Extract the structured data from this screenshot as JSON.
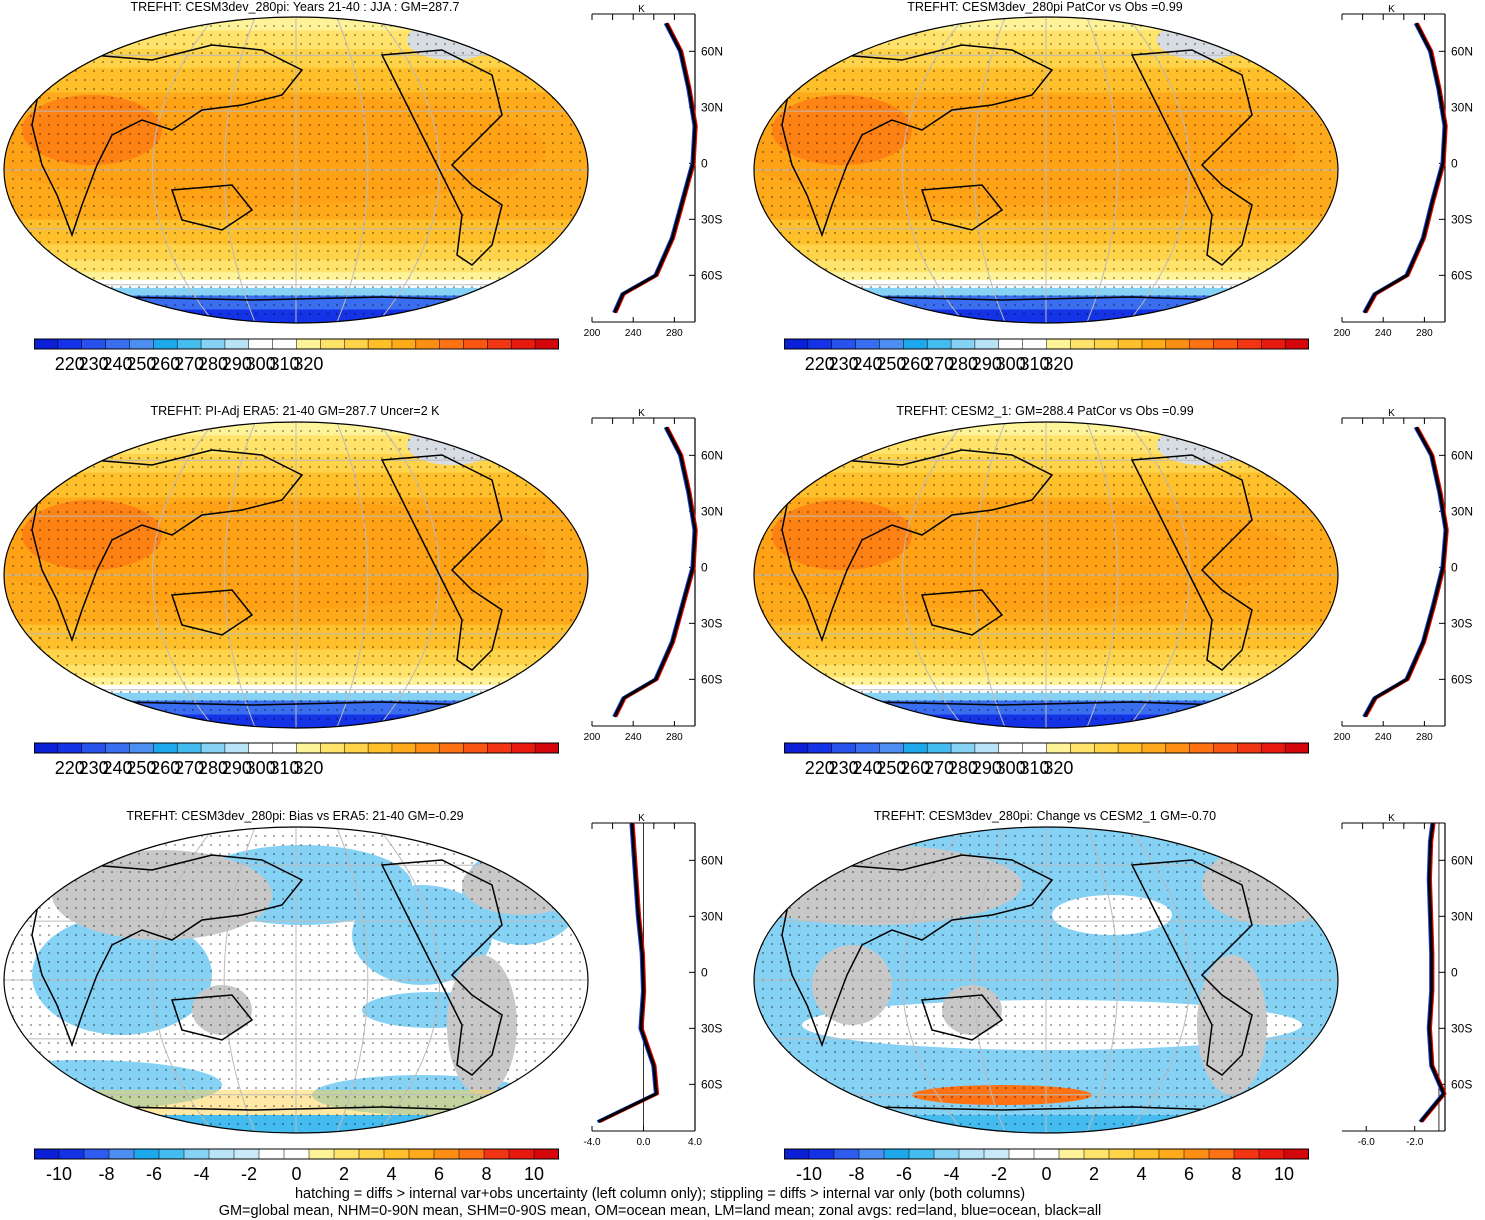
{
  "panels": [
    {
      "title": "TREFHT: CESM3dev_280pi: Years 21-40 : JJA : GM=287.7",
      "kind": "abs"
    },
    {
      "title": "TREFHT: CESM3dev_280pi PatCor vs Obs =0.99",
      "kind": "abs"
    },
    {
      "title": "TREFHT: PI-Adj ERA5: 21-40 GM=287.7 Uncer=2 K",
      "kind": "abs"
    },
    {
      "title": "TREFHT: CESM2_1: GM=288.4 PatCor vs Obs =0.99",
      "kind": "abs"
    },
    {
      "title": "TREFHT: CESM3dev_280pi: Bias vs ERA5: 21-40 GM=-0.29",
      "kind": "bias"
    },
    {
      "title": "TREFHT: CESM3dev_280pi: Change vs CESM2_1 GM=-0.70",
      "kind": "change"
    }
  ],
  "colorbars": {
    "abs": {
      "labels": [
        "220",
        "230",
        "240",
        "250",
        "260",
        "270",
        "280",
        "290",
        "300",
        "310",
        "320"
      ]
    },
    "diff": {
      "labels": [
        "-10",
        "-8",
        "-6",
        "-4",
        "-2",
        "0",
        "2",
        "4",
        "6",
        "8",
        "10"
      ]
    }
  },
  "zonal_axes": {
    "unit": "K",
    "lat_labels": [
      "60N",
      "30N",
      "0",
      "30S",
      "60S"
    ],
    "abs_x_labels": [
      "200",
      "240",
      "280"
    ],
    "bias_x_labels": [
      "-4.0",
      "0.0",
      "4.0"
    ],
    "change_x_labels": [
      "-6.0",
      "-2.0"
    ]
  },
  "footer": {
    "line1": "hatching = diffs > internal var+obs uncertainty (left column only); stippling = diffs > internal var only (both columns)",
    "line2": "GM=global mean, NHM=0-90N mean, SHM=0-90S mean, OM=ocean mean, LM=land mean; zonal avgs: red=land, blue=ocean, black=all"
  },
  "legend_colors": {
    "land": "#e60000",
    "ocean": "#1a3fe0",
    "all": "#000000"
  },
  "chart_data": [
    {
      "type": "heatmap",
      "title": "TREFHT: CESM3dev_280pi: Years 21-40 : JJA : GM=287.7",
      "colorbar_range": [
        220,
        320
      ],
      "global_mean": 287.7,
      "zonal_mean_lat": [
        -80,
        -70,
        -60,
        -40,
        -20,
        0,
        20,
        40,
        60,
        75
      ],
      "zonal_mean_all": [
        222,
        230,
        262,
        278,
        288,
        298,
        300,
        294,
        286,
        272
      ]
    },
    {
      "type": "heatmap",
      "title": "TREFHT: CESM3dev_280pi PatCor vs Obs =0.99",
      "colorbar_range": [
        220,
        320
      ],
      "pattern_correlation": 0.99,
      "zonal_mean_lat": [
        -80,
        -70,
        -60,
        -40,
        -20,
        0,
        20,
        40,
        60,
        75
      ],
      "zonal_mean_all": [
        222,
        232,
        263,
        279,
        288,
        298,
        300,
        294,
        286,
        272
      ]
    },
    {
      "type": "heatmap",
      "title": "TREFHT: PI-Adj ERA5: 21-40 GM=287.7 Uncer=2 K",
      "colorbar_range": [
        220,
        320
      ],
      "global_mean": 287.7,
      "zonal_mean_lat": [
        -80,
        -70,
        -60,
        -40,
        -20,
        0,
        20,
        40,
        60,
        75
      ],
      "zonal_mean_all": [
        222,
        231,
        262,
        278,
        288,
        298,
        300,
        294,
        286,
        272
      ]
    },
    {
      "type": "heatmap",
      "title": "TREFHT: CESM2_1: GM=288.4 PatCor vs Obs =0.99",
      "colorbar_range": [
        220,
        320
      ],
      "global_mean": 288.4,
      "pattern_correlation": 0.99,
      "zonal_mean_lat": [
        -80,
        -70,
        -60,
        -40,
        -20,
        0,
        20,
        40,
        60,
        75
      ],
      "zonal_mean_all": [
        222,
        232,
        263,
        279,
        289,
        298,
        301,
        295,
        287,
        272
      ]
    },
    {
      "type": "heatmap",
      "title": "TREFHT: CESM3dev_280pi: Bias vs ERA5: 21-40 GM=-0.29",
      "colorbar_range": [
        -10,
        10
      ],
      "global_mean": -0.29,
      "zonal_mean_lat": [
        -80,
        -65,
        -50,
        -30,
        -10,
        10,
        30,
        50,
        70,
        80
      ],
      "zonal_mean_all": [
        -3.5,
        1.0,
        0.8,
        -0.2,
        0.0,
        -0.1,
        -0.4,
        -0.6,
        -0.8,
        -0.9
      ]
    },
    {
      "type": "heatmap",
      "title": "TREFHT: CESM3dev_280pi: Change vs CESM2_1 GM=-0.70",
      "colorbar_range": [
        -10,
        10
      ],
      "global_mean": -0.7,
      "zonal_mean_lat": [
        -80,
        -65,
        -50,
        -30,
        -10,
        10,
        30,
        50,
        70,
        80
      ],
      "zonal_mean_all": [
        -1.5,
        0.4,
        -0.6,
        -0.8,
        -0.6,
        -0.6,
        -0.7,
        -0.8,
        -0.7,
        -0.5
      ]
    }
  ]
}
